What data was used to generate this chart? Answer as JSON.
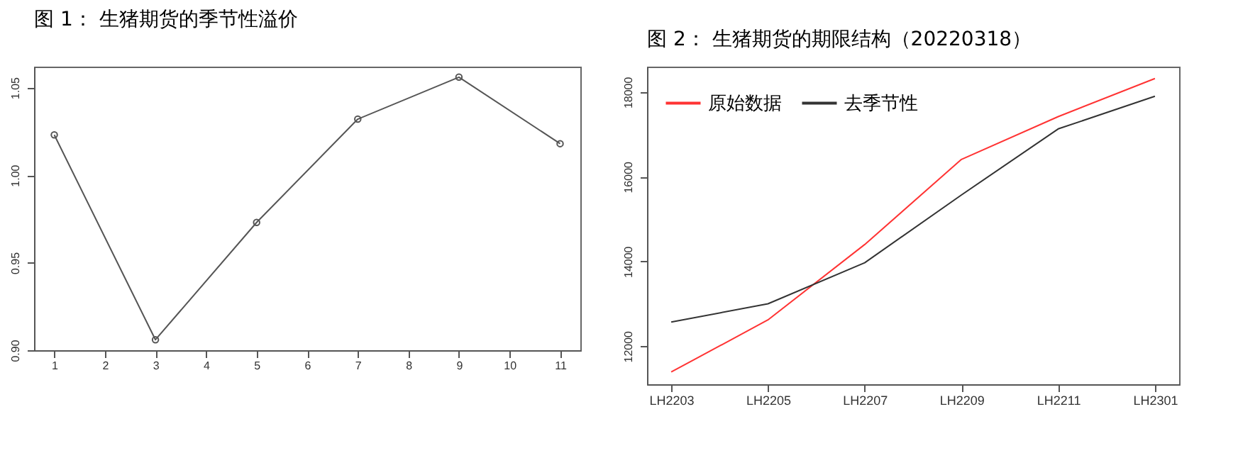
{
  "chart_data": [
    {
      "type": "line",
      "title": "图 1：    生猪期货的季节性溢价",
      "x": [
        1,
        3,
        5,
        7,
        9,
        11
      ],
      "marker": "circle",
      "xlim": [
        0.6,
        11.4
      ],
      "xticks": [
        1,
        2,
        3,
        4,
        5,
        6,
        7,
        8,
        9,
        10,
        11
      ],
      "ylim": [
        0.9,
        1.062
      ],
      "yticks": [
        {
          "value": 0.9,
          "label": "0.90"
        },
        0.95,
        {
          "value": 1.0,
          "label": "1.00"
        },
        1.05
      ],
      "grid": false,
      "series": [
        {
          "color": "#555555",
          "values": [
            1.023,
            0.906,
            0.973,
            1.032,
            1.056,
            1.018
          ]
        }
      ]
    },
    {
      "type": "line",
      "title": "图 2：    生猪期货的期限结构（20220318）",
      "categories": [
        "LH2203",
        "LH2205",
        "LH2207",
        "LH2209",
        "LH2211",
        "LH2301"
      ],
      "ylim": [
        11100,
        18600
      ],
      "yticks": [
        12000,
        14000,
        16000,
        18000
      ],
      "grid": false,
      "legend": "top left",
      "series": [
        {
          "name": "原始数据",
          "color": "#ff3333",
          "values": [
            11390,
            12620,
            14400,
            16410,
            17420,
            18320
          ]
        },
        {
          "name": "去季节性",
          "color": "#333333",
          "values": [
            12570,
            13000,
            13970,
            15570,
            17130,
            17900
          ]
        }
      ]
    }
  ]
}
